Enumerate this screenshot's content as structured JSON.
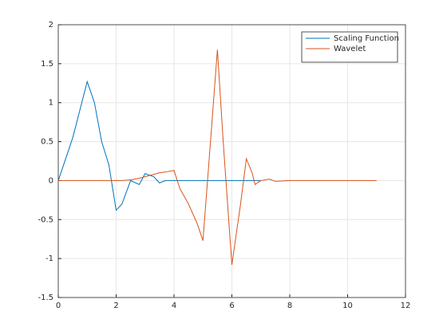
{
  "chart_data": {
    "type": "line",
    "x": [
      0,
      0.5,
      1,
      1.25,
      1.5,
      1.75,
      2,
      2.2,
      2.5,
      2.8,
      3,
      3.3,
      3.5,
      3.7,
      4,
      4.2,
      4.5,
      4.8,
      5,
      5.2,
      5.5,
      5.7,
      6,
      6.3,
      6.5,
      6.7,
      6.8,
      7,
      7.3,
      7.5,
      8,
      9,
      11
    ],
    "series": [
      {
        "name": "Scaling Function",
        "color": "#0072bd",
        "values": [
          0,
          0.55,
          1.27,
          1.0,
          0.5,
          0.2,
          -0.38,
          -0.3,
          0,
          -0.05,
          0.09,
          0.05,
          -0.03,
          0,
          0,
          0,
          0,
          0,
          0,
          0,
          0,
          0,
          0,
          0,
          0,
          0,
          0,
          0,
          null,
          null,
          null,
          null,
          null
        ]
      },
      {
        "name": "Wavelet",
        "color": "#d95319",
        "values": [
          0,
          0,
          0,
          0,
          0,
          0,
          0,
          0,
          0.01,
          0.03,
          0.05,
          0.08,
          0.1,
          0.11,
          0.13,
          -0.1,
          -0.3,
          -0.55,
          -0.77,
          0.2,
          1.68,
          0.5,
          -1.08,
          -0.3,
          0.28,
          0.1,
          -0.05,
          0,
          0.02,
          -0.01,
          0,
          0,
          0
        ]
      }
    ],
    "xlim": [
      0,
      12
    ],
    "xticks": [
      0,
      2,
      4,
      6,
      8,
      10,
      12
    ],
    "ylim": [
      -1.5,
      2
    ],
    "yticks": [
      -1.5,
      -1,
      -0.5,
      0,
      0.5,
      1,
      1.5,
      2
    ],
    "grid": true,
    "legend": "northeast"
  }
}
